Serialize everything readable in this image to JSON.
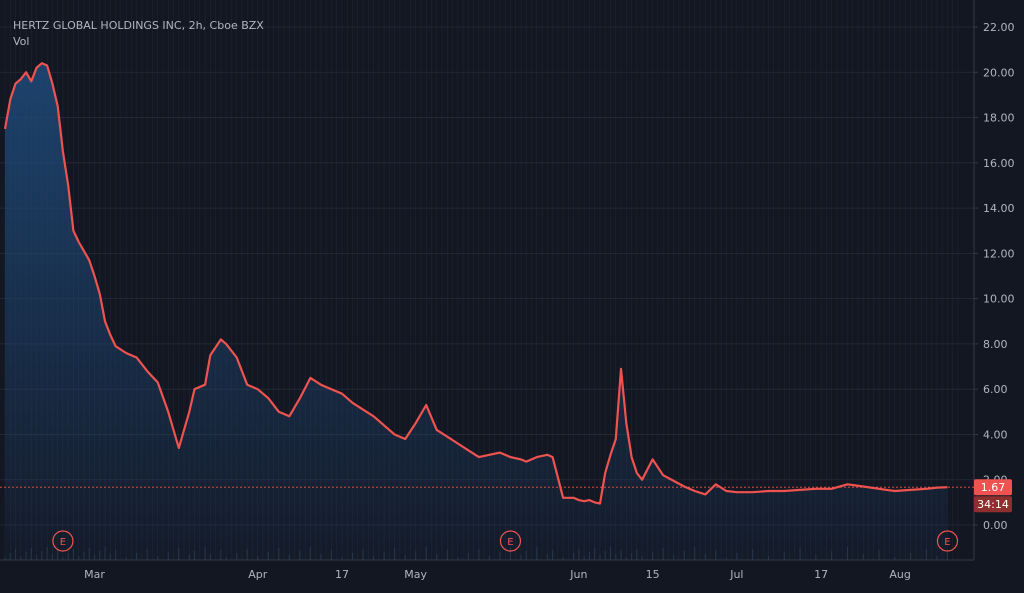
{
  "chart_data": {
    "type": "area",
    "title": "HERTZ GLOBAL HOLDINGS INC, 2h, Cboe BZX",
    "indicator_label": "Vol",
    "xlabel": "",
    "ylabel": "",
    "ylim": [
      -1.3,
      22.6
    ],
    "y_ticks": [
      "0.00",
      "2.00",
      "4.00",
      "6.00",
      "8.00",
      "10.00",
      "12.00",
      "14.00",
      "16.00",
      "18.00",
      "20.00",
      "22.00"
    ],
    "y_tick_values": [
      0,
      2,
      4,
      6,
      8,
      10,
      12,
      14,
      16,
      18,
      20,
      22
    ],
    "x_ticks": [
      "Mar",
      "Apr",
      "17",
      "May",
      "Jun",
      "15",
      "Jul",
      "17",
      "Aug"
    ],
    "x_tick_dates": [
      "2020-03-01",
      "2020-04-01",
      "2020-04-17",
      "2020-05-01",
      "2020-06-01",
      "2020-06-15",
      "2020-07-01",
      "2020-07-17",
      "2020-08-01"
    ],
    "x_range": [
      "2020-02-13",
      "2020-08-12"
    ],
    "last_price": "1.67",
    "last_price_value": 1.67,
    "countdown": "34:14",
    "earnings_marker_label": "E",
    "earnings_dates": [
      "2020-02-24",
      "2020-05-19",
      "2020-08-10"
    ],
    "grid": true,
    "colors": {
      "background": "#131722",
      "line": "#ef5350",
      "area_fill": "#1e4a7a",
      "grid": "#1f2433",
      "text": "#b2b5be",
      "price_label": "#ef5350"
    },
    "series": [
      {
        "x": [
          "2020-02-13",
          "2020-02-14",
          "2020-02-15",
          "2020-02-16",
          "2020-02-17",
          "2020-02-18",
          "2020-02-19",
          "2020-02-20",
          "2020-02-21",
          "2020-02-22",
          "2020-02-23",
          "2020-02-24",
          "2020-02-25",
          "2020-02-26",
          "2020-02-27",
          "2020-02-28",
          "2020-02-29",
          "2020-03-01",
          "2020-03-02",
          "2020-03-03",
          "2020-03-04",
          "2020-03-05",
          "2020-03-07",
          "2020-03-09",
          "2020-03-11",
          "2020-03-13",
          "2020-03-15",
          "2020-03-17",
          "2020-03-19",
          "2020-03-20",
          "2020-03-22",
          "2020-03-23",
          "2020-03-25",
          "2020-03-26",
          "2020-03-28",
          "2020-03-30",
          "2020-04-01",
          "2020-04-03",
          "2020-04-05",
          "2020-04-07",
          "2020-04-09",
          "2020-04-11",
          "2020-04-13",
          "2020-04-15",
          "2020-04-17",
          "2020-04-19",
          "2020-04-21",
          "2020-04-23",
          "2020-04-25",
          "2020-04-27",
          "2020-04-29",
          "2020-05-01",
          "2020-05-03",
          "2020-05-05",
          "2020-05-07",
          "2020-05-09",
          "2020-05-11",
          "2020-05-13",
          "2020-05-15",
          "2020-05-17",
          "2020-05-19",
          "2020-05-21",
          "2020-05-22",
          "2020-05-24",
          "2020-05-26",
          "2020-05-27",
          "2020-05-29",
          "2020-05-31",
          "2020-06-01",
          "2020-06-02",
          "2020-06-03",
          "2020-06-04",
          "2020-06-05",
          "2020-06-06",
          "2020-06-07",
          "2020-06-08",
          "2020-06-09",
          "2020-06-10",
          "2020-06-11",
          "2020-06-12",
          "2020-06-13",
          "2020-06-15",
          "2020-06-17",
          "2020-06-19",
          "2020-06-21",
          "2020-06-23",
          "2020-06-25",
          "2020-06-27",
          "2020-06-29",
          "2020-07-01",
          "2020-07-04",
          "2020-07-07",
          "2020-07-10",
          "2020-07-13",
          "2020-07-16",
          "2020-07-19",
          "2020-07-22",
          "2020-07-25",
          "2020-07-28",
          "2020-07-31",
          "2020-08-03",
          "2020-08-06",
          "2020-08-08",
          "2020-08-10"
        ],
        "values": [
          17.5,
          18.8,
          19.5,
          19.7,
          20.0,
          19.6,
          20.2,
          20.4,
          20.3,
          19.5,
          18.5,
          16.5,
          15.0,
          13.0,
          12.5,
          12.1,
          11.7,
          11.0,
          10.2,
          9.0,
          8.4,
          7.9,
          7.6,
          7.4,
          6.8,
          6.3,
          5.0,
          3.4,
          5.0,
          6.0,
          6.2,
          7.5,
          8.2,
          8.0,
          7.4,
          6.2,
          6.0,
          5.6,
          5.0,
          4.8,
          5.6,
          6.5,
          6.2,
          6.0,
          5.8,
          5.4,
          5.1,
          4.8,
          4.4,
          4.0,
          3.8,
          4.5,
          5.3,
          4.2,
          3.9,
          3.6,
          3.3,
          3.0,
          3.1,
          3.2,
          3.0,
          2.9,
          2.8,
          3.0,
          3.1,
          3.0,
          1.2,
          1.2,
          1.1,
          1.05,
          1.1,
          1.0,
          0.95,
          2.3,
          3.1,
          3.8,
          6.9,
          4.5,
          3.0,
          2.3,
          2.0,
          2.9,
          2.2,
          1.95,
          1.7,
          1.5,
          1.35,
          1.8,
          1.5,
          1.45,
          1.45,
          1.5,
          1.5,
          1.55,
          1.6,
          1.6,
          1.8,
          1.7,
          1.6,
          1.5,
          1.55,
          1.6,
          1.65,
          1.67
        ]
      }
    ]
  }
}
